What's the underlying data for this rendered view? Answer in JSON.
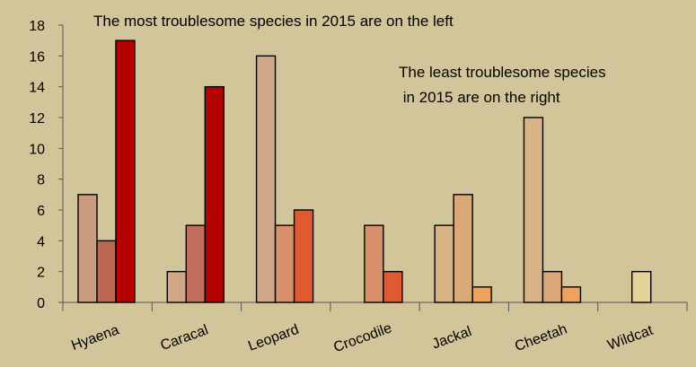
{
  "chart_data": {
    "type": "bar",
    "title": "",
    "xlabel": "",
    "ylabel": "",
    "ylim": [
      0,
      18
    ],
    "yticks": [
      0,
      2,
      4,
      6,
      8,
      10,
      12,
      14,
      16,
      18
    ],
    "grid": false,
    "legend": "none",
    "categories": [
      "Hyaena",
      "Caracal",
      "Leopard",
      "Crocodile",
      "Jackal",
      "Cheetah",
      "Wildcat"
    ],
    "groups": [
      {
        "category": "Hyaena",
        "bars": [
          {
            "value": 7,
            "color": "#c99c80"
          },
          {
            "value": 4,
            "color": "#bd6552"
          },
          {
            "value": 17,
            "color": "#b30000"
          }
        ]
      },
      {
        "category": "Caracal",
        "bars": [
          {
            "value": 2,
            "color": "#cfa686"
          },
          {
            "value": 5,
            "color": "#bf6f5b"
          },
          {
            "value": 14,
            "color": "#b30000"
          }
        ]
      },
      {
        "category": "Leopard",
        "bars": [
          {
            "value": 16,
            "color": "#cfa686"
          },
          {
            "value": 5,
            "color": "#d8906b"
          },
          {
            "value": 6,
            "color": "#df5a33"
          }
        ]
      },
      {
        "category": "Crocodile",
        "bars": [
          {
            "value": null,
            "color": null
          },
          {
            "value": 5,
            "color": "#d8906b"
          },
          {
            "value": 2,
            "color": "#df5a33"
          }
        ]
      },
      {
        "category": "Jackal",
        "bars": [
          {
            "value": 5,
            "color": "#d9b486"
          },
          {
            "value": 7,
            "color": "#dba878"
          },
          {
            "value": 1,
            "color": "#eea25c"
          }
        ]
      },
      {
        "category": "Cheetah",
        "bars": [
          {
            "value": 12,
            "color": "#d9b486"
          },
          {
            "value": 2,
            "color": "#dba878"
          },
          {
            "value": 1,
            "color": "#eea25c"
          }
        ]
      },
      {
        "category": "Wildcat",
        "bars": [
          {
            "value": null,
            "color": null
          },
          {
            "value": 2,
            "color": "#e2d39a"
          },
          {
            "value": null,
            "color": null
          }
        ]
      }
    ],
    "annotations": [
      {
        "lines": [
          "The most troublesome species in 2015 are on the left"
        ]
      },
      {
        "lines": [
          "The least troublesome species",
          " in 2015 are on the right"
        ]
      }
    ]
  },
  "colors": {
    "background": "#d2c59a",
    "axis": "#555555"
  }
}
